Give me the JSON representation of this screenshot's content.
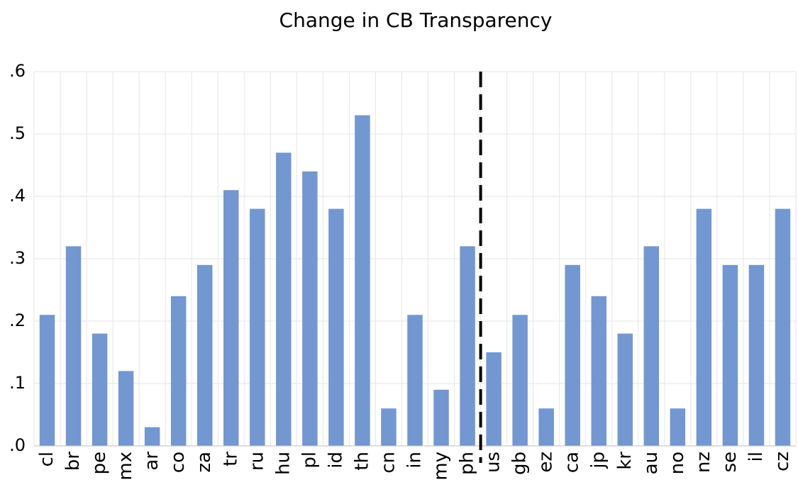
{
  "chart_data": {
    "type": "bar",
    "title": "Change in CB Transparency",
    "categories": [
      "cl",
      "br",
      "pe",
      "mx",
      "ar",
      "co",
      "za",
      "tr",
      "ru",
      "hu",
      "pl",
      "id",
      "th",
      "cn",
      "in",
      "my",
      "ph",
      "us",
      "gb",
      "ez",
      "ca",
      "jp",
      "kr",
      "au",
      "no",
      "nz",
      "se",
      "il",
      "cz"
    ],
    "values": [
      0.21,
      0.32,
      0.18,
      0.12,
      0.03,
      0.24,
      0.29,
      0.41,
      0.38,
      0.47,
      0.44,
      0.38,
      0.53,
      0.06,
      0.21,
      0.09,
      0.32,
      0.15,
      0.21,
      0.06,
      0.29,
      0.24,
      0.18,
      0.32,
      0.06,
      0.38,
      0.29,
      0.29,
      0.38
    ],
    "color": "#7397d0",
    "ylim": [
      0,
      0.6
    ],
    "yticks": [
      {
        "value": 0,
        "label": ".0"
      },
      {
        "value": 0.1,
        "label": ".1"
      },
      {
        "value": 0.2,
        "label": ".2"
      },
      {
        "value": 0.3,
        "label": ".3"
      },
      {
        "value": 0.4,
        "label": ".4"
      },
      {
        "value": 0.5,
        "label": ".5"
      },
      {
        "value": 0.6,
        "label": ".6"
      }
    ],
    "grid": true
  }
}
